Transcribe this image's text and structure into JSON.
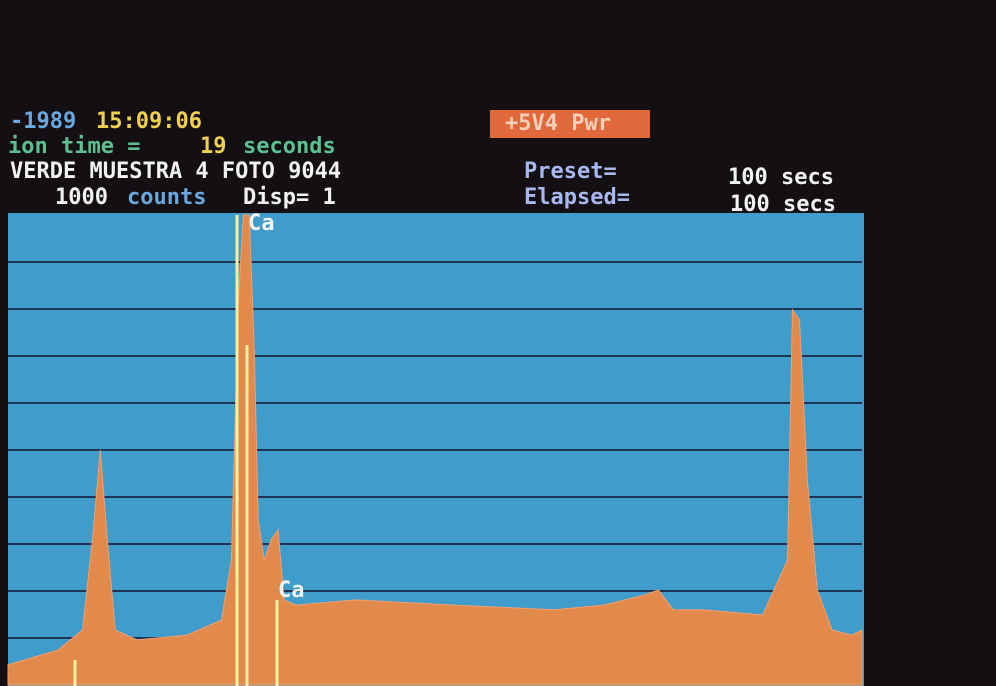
{
  "header": {
    "date": "-1989",
    "time": "15:09:06",
    "acq_label": "ion time =",
    "acq_value": "19",
    "acq_unit": "seconds",
    "sample": "VERDE MUESTRA 4 FOTO 9044",
    "scale_value": "1000",
    "scale_unit": "counts",
    "display": "Disp= 1",
    "status": "+5V4 Pwr",
    "preset_label": "Preset=",
    "preset_value": "100 secs",
    "elapsed_label": "Elapsed=",
    "elapsed_value": "100 secs"
  },
  "chart_data": {
    "type": "area",
    "x": [
      0,
      50,
      75,
      85,
      93,
      100,
      108,
      130,
      180,
      215,
      225,
      232,
      237,
      243,
      248,
      252,
      258,
      265,
      272,
      278,
      290,
      350,
      450,
      550,
      600,
      640,
      655,
      670,
      700,
      760,
      785,
      790,
      797,
      805,
      815,
      830,
      850,
      860
    ],
    "values": [
      43,
      74,
      117,
      309,
      500,
      309,
      117,
      96,
      106,
      138,
      266,
      819,
      1000,
      1000,
      713,
      351,
      266,
      309,
      330,
      181,
      170,
      181,
      170,
      160,
      170,
      191,
      202,
      160,
      160,
      149,
      266,
      798,
      777,
      436,
      202,
      117,
      106,
      117
    ],
    "color": "#e2894c",
    "xlim": [
      0,
      860
    ],
    "ylim": [
      0,
      1000
    ],
    "yticks": [
      100,
      200,
      300,
      400,
      500,
      600,
      700,
      800,
      900
    ],
    "grid": true,
    "annotations": [
      "Ca",
      "Ca"
    ]
  }
}
